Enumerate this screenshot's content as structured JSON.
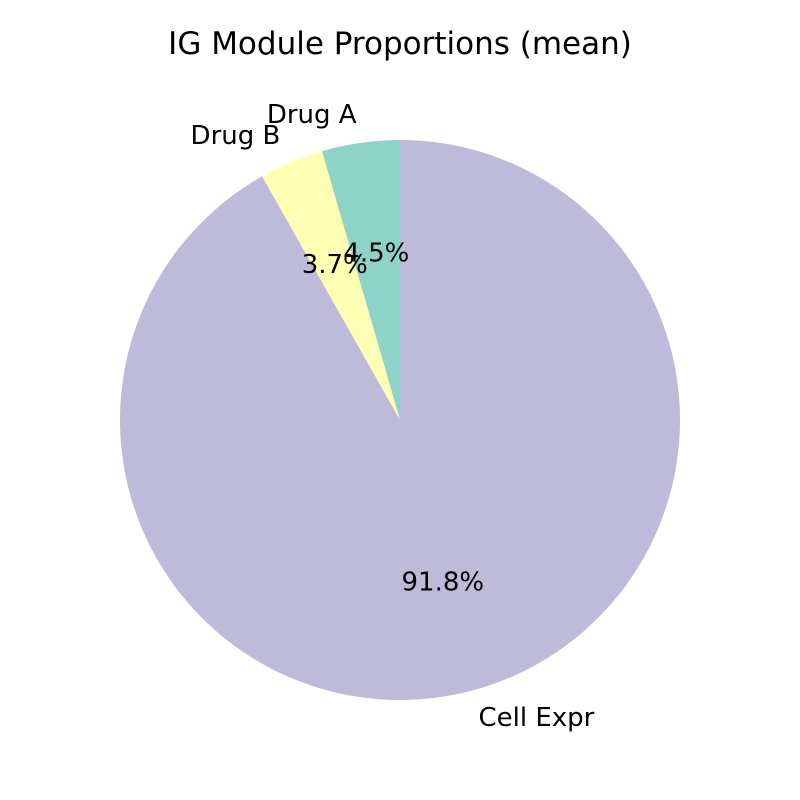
{
  "chart_data": {
    "type": "pie",
    "title": "IG Module Proportions (mean)",
    "slices": [
      {
        "label": "Drug A",
        "value": 4.5,
        "pct_label": "4.5%",
        "color": "#8dd3c7"
      },
      {
        "label": "Drug B",
        "value": 3.7,
        "pct_label": "3.7%",
        "color": "#ffffb3"
      },
      {
        "label": "Cell Expr",
        "value": 91.8,
        "pct_label": "91.8%",
        "color": "#bebada"
      }
    ],
    "start_angle": "top",
    "direction": "counterclockwise",
    "legend": "none"
  }
}
